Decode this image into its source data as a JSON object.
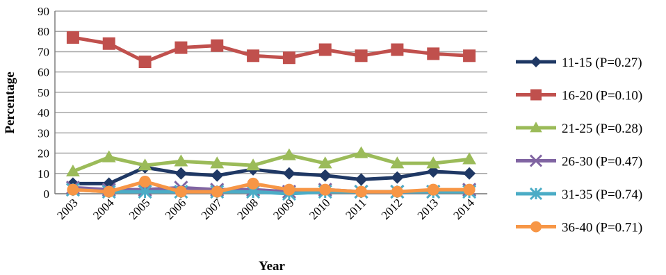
{
  "chart_data": {
    "type": "line",
    "title": "",
    "xlabel": "Year",
    "ylabel": "Percentage",
    "categories": [
      "2003",
      "2004",
      "2005",
      "2006",
      "2007",
      "2008",
      "2009",
      "2010",
      "2011",
      "2012",
      "2013",
      "2014"
    ],
    "ylim": [
      0,
      90
    ],
    "yticks": [
      "0",
      "10",
      "20",
      "30",
      "40",
      "50",
      "60",
      "70",
      "80",
      "90"
    ],
    "grid": "horizontal",
    "legend_position": "right",
    "series": [
      {
        "name": "11-15 (P=0.27)",
        "color": "#1f3864",
        "marker": "diamond",
        "values": [
          5,
          5,
          13,
          10,
          9,
          12,
          10,
          9,
          7,
          8,
          11,
          10
        ]
      },
      {
        "name": "16-20 (P=0.10)",
        "color": "#c0504d",
        "marker": "square",
        "values": [
          77,
          74,
          65,
          72,
          73,
          68,
          67,
          71,
          68,
          71,
          69,
          68
        ]
      },
      {
        "name": "21-25 (P=0.28)",
        "color": "#9bbb59",
        "marker": "triangle",
        "values": [
          11,
          18,
          14,
          16,
          15,
          14,
          19,
          15,
          20,
          15,
          15,
          17
        ]
      },
      {
        "name": "26-30 (P=0.47)",
        "color": "#8064a2",
        "marker": "x",
        "values": [
          3,
          2,
          2,
          3,
          2,
          2,
          1,
          2,
          1,
          1,
          1,
          2
        ]
      },
      {
        "name": "31-35 (P=0.74)",
        "color": "#4bacc6",
        "marker": "star",
        "values": [
          2,
          1,
          1,
          1,
          1,
          1,
          0,
          1,
          1,
          1,
          1,
          1
        ]
      },
      {
        "name": "36-40 (P=0.71)",
        "color": "#f79646",
        "marker": "circle",
        "values": [
          2,
          1,
          6,
          1,
          1,
          5,
          2,
          2,
          1,
          1,
          2,
          2
        ]
      }
    ]
  }
}
